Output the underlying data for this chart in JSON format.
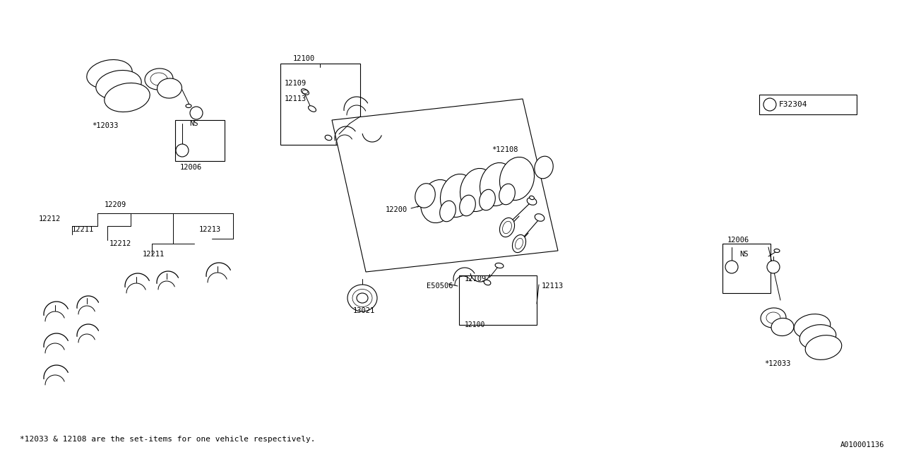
{
  "bg_color": "#ffffff",
  "line_color": "#000000",
  "footer_text": "*12033 & 12108 are the set-items for one vehicle respectively.",
  "part_id": "A010001136",
  "diagram_code": "F32304",
  "labels": {
    "12033_tl": "*12033",
    "12006_tl": "12006",
    "12100_tc": "12100",
    "12109_tc": "12109",
    "12113_tc": "12113",
    "12108": "*12108",
    "12200": "12200",
    "12209": "12209",
    "12212_a": "12212",
    "12211_a": "12211",
    "12212_b": "12212",
    "12211_b": "12211",
    "12213": "12213",
    "13021": "13021",
    "E50506": "E50506",
    "12109_br": "12109",
    "12113_br": "12113",
    "12100_br": "12100",
    "12006_r": "12006",
    "12033_br": "*12033",
    "NS_tl": "NS",
    "NS_r": "NS"
  }
}
